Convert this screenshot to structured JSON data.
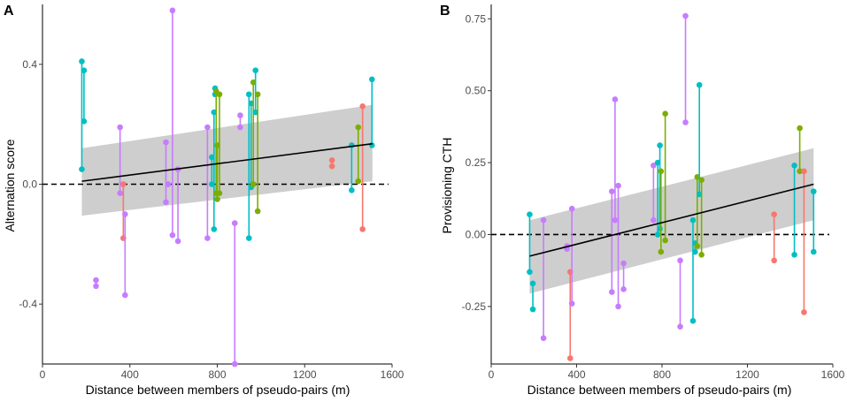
{
  "colors": {
    "series": [
      "#F8766D",
      "#7CAE00",
      "#00BFC4",
      "#C77CFF"
    ],
    "trend": "#000000",
    "ribbon": "#BEBEBE",
    "reference": "#000000"
  },
  "chart_data": [
    {
      "panel": "A",
      "type": "scatter",
      "title": "",
      "xlabel": "Distance between members of pseudo-pairs (m)",
      "ylabel": "Alternation score",
      "xlim": [
        0,
        1600
      ],
      "ylim": [
        -0.6,
        0.6
      ],
      "xticks": [
        0,
        400,
        800,
        1200,
        1600
      ],
      "yticks": [
        -0.4,
        0.0,
        0.4
      ],
      "xtick_labels": [
        "0",
        "400",
        "800",
        "1200",
        "1600"
      ],
      "ytick_labels": [
        "-0.4",
        "0.0",
        "0.4"
      ],
      "reference_line": {
        "y": 0,
        "style": "dashed"
      },
      "trend": {
        "x": [
          180,
          1510
        ],
        "y": [
          0.01,
          0.135
        ],
        "ci_lower": [
          -0.105,
          0.01
        ],
        "ci_upper": [
          0.12,
          0.265
        ]
      },
      "segments": [
        {
          "x": 180,
          "y": [
            0.41,
            0.05
          ],
          "group": 2
        },
        {
          "x": 190,
          "y": [
            0.38,
            0.21
          ],
          "group": 2
        },
        {
          "x": 245,
          "y": [
            -0.32,
            -0.34
          ],
          "group": 3
        },
        {
          "x": 355,
          "y": [
            0.19,
            -0.03
          ],
          "group": 3
        },
        {
          "x": 370,
          "y": [
            0.0,
            -0.18
          ],
          "group": 0
        },
        {
          "x": 378,
          "y": [
            -0.1,
            -0.37
          ],
          "group": 3
        },
        {
          "x": 565,
          "y": [
            0.14,
            -0.06
          ],
          "group": 3
        },
        {
          "x": 575,
          "y": [
            0.0,
            0.0
          ],
          "group": 3
        },
        {
          "x": 595,
          "y": [
            0.58,
            -0.17
          ],
          "group": 3
        },
        {
          "x": 620,
          "y": [
            0.05,
            -0.19
          ],
          "group": 3
        },
        {
          "x": 755,
          "y": [
            0.19,
            -0.18
          ],
          "group": 3
        },
        {
          "x": 775,
          "y": [
            0.09,
            0.0
          ],
          "group": 2
        },
        {
          "x": 785,
          "y": [
            0.24,
            -0.15
          ],
          "group": 2
        },
        {
          "x": 790,
          "y": [
            0.32,
            0.3
          ],
          "group": 2
        },
        {
          "x": 795,
          "y": [
            0.31,
            -0.03
          ],
          "group": 1
        },
        {
          "x": 800,
          "y": [
            0.13,
            -0.05
          ],
          "group": 1
        },
        {
          "x": 810,
          "y": [
            0.3,
            -0.03
          ],
          "group": 1
        },
        {
          "x": 880,
          "y": [
            -0.13,
            -0.6
          ],
          "group": 3
        },
        {
          "x": 905,
          "y": [
            0.23,
            0.19
          ],
          "group": 3
        },
        {
          "x": 945,
          "y": [
            0.3,
            -0.18
          ],
          "group": 2
        },
        {
          "x": 955,
          "y": [
            0.27,
            -0.01
          ],
          "group": 2
        },
        {
          "x": 965,
          "y": [
            0.34,
            0.0
          ],
          "group": 1
        },
        {
          "x": 975,
          "y": [
            0.38,
            0.24
          ],
          "group": 2
        },
        {
          "x": 985,
          "y": [
            0.3,
            -0.09
          ],
          "group": 1
        },
        {
          "x": 1325,
          "y": [
            0.08,
            0.06
          ],
          "group": 0
        },
        {
          "x": 1415,
          "y": [
            0.13,
            -0.02
          ],
          "group": 2
        },
        {
          "x": 1445,
          "y": [
            0.19,
            0.01
          ],
          "group": 1
        },
        {
          "x": 1465,
          "y": [
            0.26,
            -0.15
          ],
          "group": 0
        },
        {
          "x": 1508,
          "y": [
            0.35,
            0.13
          ],
          "group": 2
        }
      ]
    },
    {
      "panel": "B",
      "type": "scatter",
      "title": "",
      "xlabel": "Distance between members of pseudo-pairs (m)",
      "ylabel": "Provisioning CTH",
      "xlim": [
        0,
        1600
      ],
      "ylim": [
        -0.45,
        0.8
      ],
      "xticks": [
        0,
        400,
        800,
        1200,
        1600
      ],
      "yticks": [
        -0.25,
        0.0,
        0.25,
        0.5,
        0.75
      ],
      "xtick_labels": [
        "0",
        "400",
        "800",
        "1200",
        "1600"
      ],
      "ytick_labels": [
        "-0.25",
        "0.00",
        "0.25",
        "0.50",
        "0.75"
      ],
      "reference_line": {
        "y": 0,
        "style": "dashed"
      },
      "trend": {
        "x": [
          180,
          1510
        ],
        "y": [
          -0.075,
          0.175
        ],
        "ci_lower": [
          -0.205,
          0.05
        ],
        "ci_upper": [
          0.05,
          0.3
        ]
      },
      "segments": [
        {
          "x": 180,
          "y": [
            0.07,
            -0.13
          ],
          "group": 2
        },
        {
          "x": 195,
          "y": [
            -0.17,
            -0.26
          ],
          "group": 2
        },
        {
          "x": 245,
          "y": [
            0.05,
            -0.36
          ],
          "group": 3
        },
        {
          "x": 355,
          "y": [
            -0.04,
            -0.05
          ],
          "group": 3
        },
        {
          "x": 370,
          "y": [
            -0.13,
            -0.43
          ],
          "group": 0
        },
        {
          "x": 378,
          "y": [
            0.09,
            -0.24
          ],
          "group": 3
        },
        {
          "x": 565,
          "y": [
            0.15,
            -0.2
          ],
          "group": 3
        },
        {
          "x": 580,
          "y": [
            0.47,
            0.05
          ],
          "group": 3
        },
        {
          "x": 595,
          "y": [
            0.17,
            -0.25
          ],
          "group": 3
        },
        {
          "x": 620,
          "y": [
            -0.1,
            -0.19
          ],
          "group": 3
        },
        {
          "x": 760,
          "y": [
            0.24,
            0.05
          ],
          "group": 3
        },
        {
          "x": 780,
          "y": [
            0.25,
            0.0
          ],
          "group": 2
        },
        {
          "x": 790,
          "y": [
            0.31,
            0.02
          ],
          "group": 2
        },
        {
          "x": 795,
          "y": [
            0.22,
            -0.06
          ],
          "group": 1
        },
        {
          "x": 815,
          "y": [
            0.42,
            -0.02
          ],
          "group": 1
        },
        {
          "x": 885,
          "y": [
            -0.09,
            -0.32
          ],
          "group": 3
        },
        {
          "x": 910,
          "y": [
            0.76,
            0.39
          ],
          "group": 3
        },
        {
          "x": 945,
          "y": [
            0.05,
            -0.3
          ],
          "group": 2
        },
        {
          "x": 955,
          "y": [
            -0.03,
            -0.06
          ],
          "group": 2
        },
        {
          "x": 965,
          "y": [
            0.2,
            -0.04
          ],
          "group": 1
        },
        {
          "x": 975,
          "y": [
            0.52,
            0.14
          ],
          "group": 2
        },
        {
          "x": 985,
          "y": [
            0.19,
            -0.07
          ],
          "group": 1
        },
        {
          "x": 1325,
          "y": [
            0.07,
            -0.09
          ],
          "group": 0
        },
        {
          "x": 1420,
          "y": [
            0.24,
            -0.07
          ],
          "group": 2
        },
        {
          "x": 1445,
          "y": [
            0.37,
            0.22
          ],
          "group": 1
        },
        {
          "x": 1465,
          "y": [
            0.22,
            -0.27
          ],
          "group": 0
        },
        {
          "x": 1510,
          "y": [
            0.15,
            -0.06
          ],
          "group": 2
        }
      ]
    }
  ]
}
